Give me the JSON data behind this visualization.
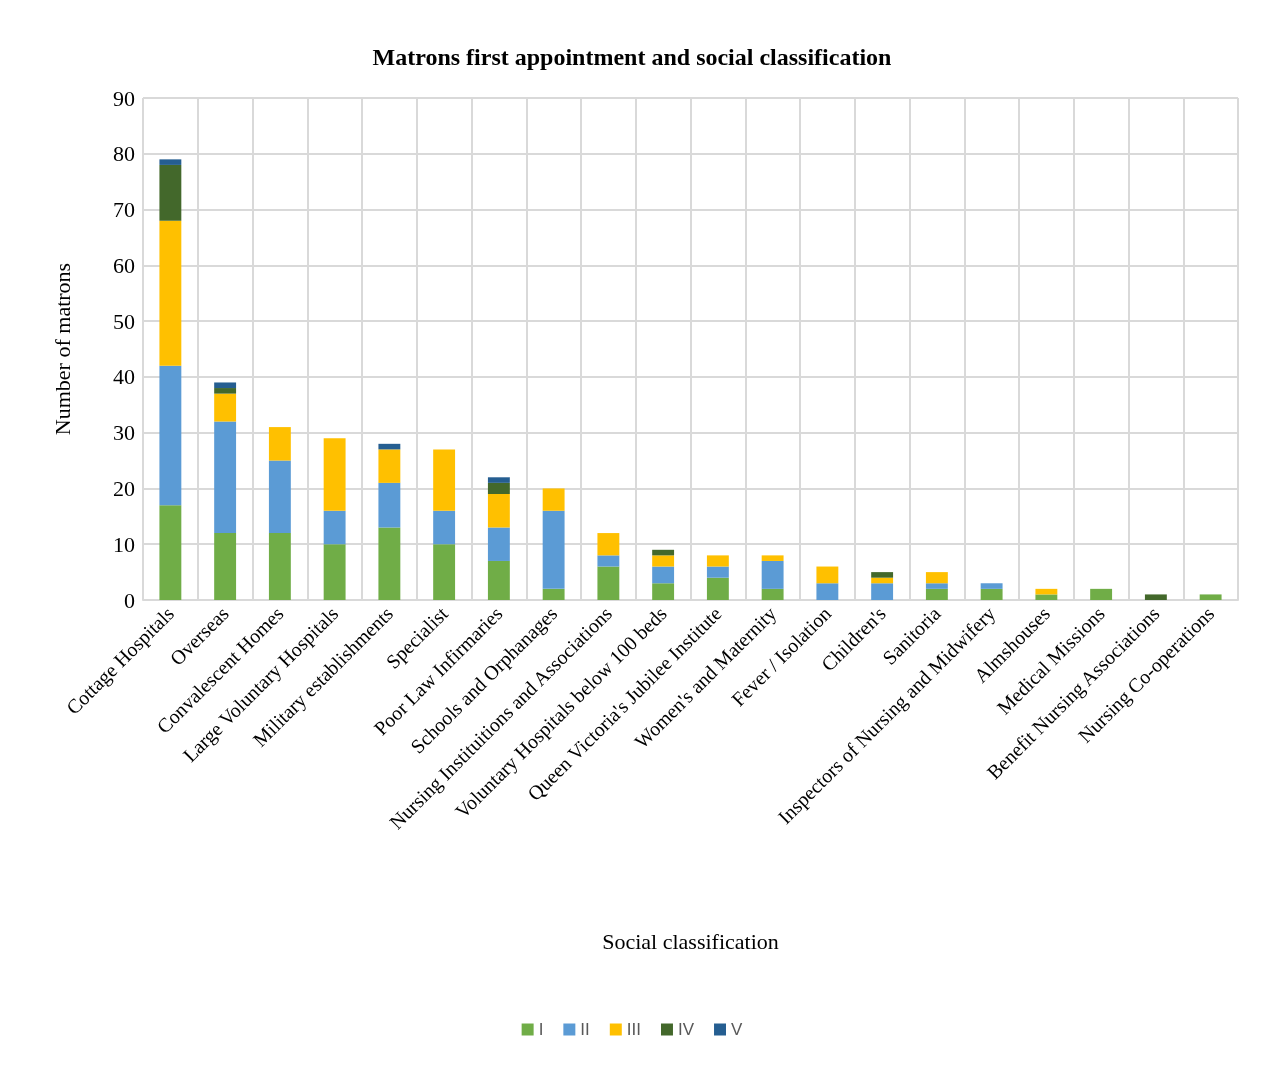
{
  "chart_data": {
    "type": "bar",
    "title": "Matrons first appointment and social classification",
    "xlabel": "Social classification",
    "ylabel": "Number of matrons",
    "categories": [
      "Cottage Hospitals",
      "Overseas",
      "Convalescent Homes",
      "Large Voluntary Hospitals",
      "Military establishments",
      "Specialist",
      "Poor Law Infirmaries",
      "Schools and Orphanages",
      "Nursing Instituitions and Associations",
      "Voluntary Hospitals below 100 beds",
      "Queen Victoria's Jubilee Institute",
      "Women's and Maternity",
      "Fever / Isolation",
      "Children's",
      "Sanitoria",
      "Inspectors of Nursing and Midwifery",
      "Almshouses",
      "Medical Missions",
      "Benefit Nursing Associations",
      "Nursing Co-operations"
    ],
    "stacked": true,
    "series": [
      {
        "name": "I",
        "color": "#70ad47",
        "values": [
          17,
          12,
          12,
          10,
          13,
          10,
          7,
          2,
          6,
          3,
          4,
          2,
          0,
          0,
          2,
          2,
          1,
          2,
          0,
          1
        ]
      },
      {
        "name": "II",
        "color": "#5b9bd5",
        "values": [
          25,
          20,
          13,
          6,
          8,
          6,
          6,
          14,
          2,
          3,
          2,
          5,
          3,
          3,
          1,
          1,
          0,
          0,
          0,
          0
        ]
      },
      {
        "name": "III",
        "color": "#ffc000",
        "values": [
          26,
          5,
          6,
          13,
          6,
          11,
          6,
          4,
          4,
          2,
          2,
          1,
          3,
          1,
          2,
          0,
          1,
          0,
          0,
          0
        ]
      },
      {
        "name": "IV",
        "color": "#43682b",
        "values": [
          10,
          1,
          0,
          0,
          0,
          0,
          2,
          0,
          0,
          1,
          0,
          0,
          0,
          1,
          0,
          0,
          0,
          0,
          1,
          0
        ]
      },
      {
        "name": "V",
        "color": "#255e91",
        "values": [
          1,
          1,
          0,
          0,
          1,
          0,
          1,
          0,
          0,
          0,
          0,
          0,
          0,
          0,
          0,
          0,
          0,
          0,
          0,
          0
        ]
      }
    ],
    "ylim": [
      0,
      90
    ],
    "yticks": [
      0,
      10,
      20,
      30,
      40,
      50,
      60,
      70,
      80,
      90
    ],
    "grid": true,
    "legend": "bottom"
  }
}
